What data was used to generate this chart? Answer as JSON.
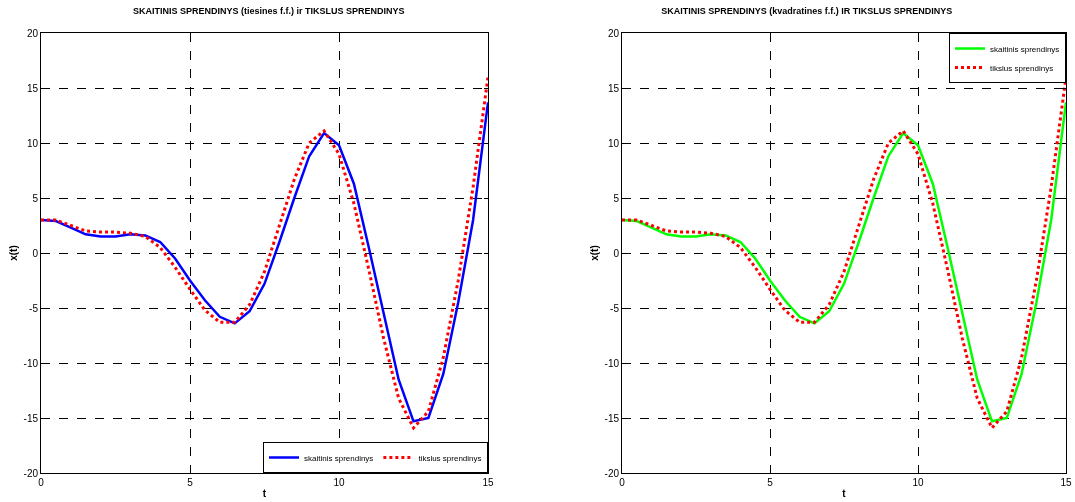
{
  "chart_data": [
    {
      "type": "line",
      "title": "SKAITINIS SPRENDINYS (tiesines f.f.) ir TIKSLUS SPRENDINYS",
      "xlabel": "t",
      "ylabel": "x(t)",
      "xlim": [
        0,
        15
      ],
      "xticks": [
        0,
        5,
        10,
        15
      ],
      "ylim": [
        -20,
        20
      ],
      "yticks": [
        -20,
        -15,
        -10,
        -5,
        0,
        5,
        10,
        15,
        20
      ],
      "grid": true,
      "legend": "bottom right",
      "x": [
        0,
        0.5,
        1,
        1.5,
        2,
        2.5,
        3,
        3.5,
        4,
        4.5,
        5,
        5.5,
        6,
        6.5,
        7,
        7.5,
        8,
        8.5,
        9,
        9.5,
        10,
        10.5,
        11,
        11.5,
        12,
        12.5,
        13,
        13.5,
        14,
        14.5,
        15
      ],
      "series": [
        {
          "name": "skaitinis sprendinys",
          "color": "#0000ff",
          "line_style": "solid",
          "values": [
            3.0,
            2.9,
            2.3,
            1.7,
            1.5,
            1.5,
            1.7,
            1.6,
            1.0,
            -0.5,
            -2.5,
            -4.3,
            -5.8,
            -6.4,
            -5.3,
            -2.8,
            1.0,
            5.0,
            8.8,
            10.9,
            9.8,
            6.3,
            0.5,
            -5.5,
            -11.5,
            -15.3,
            -15.0,
            -11.0,
            -4.5,
            3.0,
            13.7
          ]
        },
        {
          "name": "tikslus sprendinys",
          "color": "#ff0000",
          "line_style": "dotted",
          "values": [
            3.0,
            3.0,
            2.5,
            2.0,
            1.9,
            1.9,
            1.8,
            1.5,
            0.5,
            -1.3,
            -3.3,
            -5.2,
            -6.3,
            -6.3,
            -4.7,
            -1.7,
            2.5,
            6.7,
            10.0,
            11.1,
            9.0,
            4.5,
            -1.5,
            -7.8,
            -13.2,
            -15.9,
            -14.4,
            -9.5,
            -2.5,
            6.0,
            16.0
          ]
        }
      ]
    },
    {
      "type": "line",
      "title": "SKAITINIS SPRENDINYS (kvadratines f.f.) IR TIKSLUS SPRENDINYS",
      "xlabel": "t",
      "ylabel": "x(t)",
      "xlim": [
        0,
        15
      ],
      "xticks": [
        0,
        5,
        10,
        15
      ],
      "ylim": [
        -20,
        20
      ],
      "yticks": [
        -20,
        -15,
        -10,
        -5,
        0,
        5,
        10,
        15,
        20
      ],
      "grid": true,
      "legend": "top right",
      "x": [
        0,
        0.5,
        1,
        1.5,
        2,
        2.5,
        3,
        3.5,
        4,
        4.5,
        5,
        5.5,
        6,
        6.5,
        7,
        7.5,
        8,
        8.5,
        9,
        9.5,
        10,
        10.5,
        11,
        11.5,
        12,
        12.5,
        13,
        13.5,
        14,
        14.5,
        15
      ],
      "series": [
        {
          "name": "skaitinis sprendinys",
          "color": "#00ff00",
          "line_style": "solid",
          "values": [
            3.0,
            2.9,
            2.3,
            1.7,
            1.5,
            1.5,
            1.7,
            1.6,
            1.0,
            -0.5,
            -2.5,
            -4.3,
            -5.8,
            -6.4,
            -5.3,
            -2.8,
            1.0,
            5.0,
            8.8,
            10.9,
            9.8,
            6.3,
            0.5,
            -5.5,
            -11.5,
            -15.3,
            -15.0,
            -11.0,
            -4.5,
            3.0,
            13.7
          ]
        },
        {
          "name": "tikslus sprendinys",
          "color": "#ff0000",
          "line_style": "dotted",
          "values": [
            3.0,
            3.0,
            2.5,
            2.0,
            1.9,
            1.9,
            1.8,
            1.5,
            0.5,
            -1.3,
            -3.3,
            -5.2,
            -6.3,
            -6.3,
            -4.7,
            -1.7,
            2.5,
            6.7,
            10.0,
            11.1,
            9.0,
            4.5,
            -1.5,
            -7.8,
            -13.2,
            -15.9,
            -14.4,
            -9.5,
            -2.5,
            6.0,
            16.0
          ]
        }
      ]
    }
  ]
}
